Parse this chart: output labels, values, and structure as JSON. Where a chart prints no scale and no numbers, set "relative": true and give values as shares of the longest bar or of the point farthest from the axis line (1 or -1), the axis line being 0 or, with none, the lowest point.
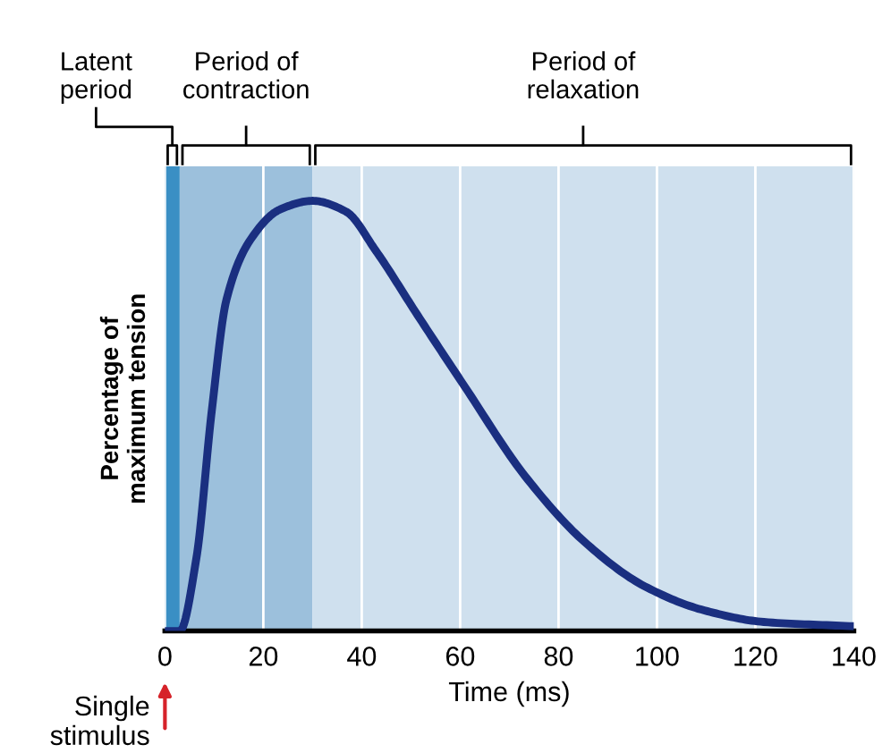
{
  "chart_data": {
    "type": "line",
    "relative": true,
    "xlabel": "Time (ms)",
    "ylabel": "Percentage of\nmaximum tension",
    "x": [
      0,
      3,
      6.4,
      9.5,
      12.5,
      17.4,
      23.4,
      30,
      36.8,
      42.8,
      51.3,
      61,
      73.2,
      85.3,
      97.5,
      109.6,
      121.7,
      140
    ],
    "series": [
      {
        "color": "#1a2f80",
        "values": [
          0,
          0,
          0.17,
          0.51,
          0.77,
          0.91,
          0.98,
          1,
          0.975,
          0.885,
          0.735,
          0.567,
          0.36,
          0.207,
          0.104,
          0.048,
          0.021,
          0.011
        ]
      }
    ],
    "xlim": [
      0,
      140
    ],
    "xticks": [
      0,
      20,
      40,
      60,
      80,
      100,
      120,
      140
    ],
    "grid": "x",
    "marker": "none",
    "line_style": "solid",
    "bands": [
      {
        "axis": "x",
        "from": 0,
        "to": 3,
        "label": "Latent\nperiod",
        "color": "#3a8fc4"
      },
      {
        "axis": "x",
        "from": 3,
        "to": 30,
        "label": "Period of\ncontraction",
        "color": "#9cc0dc"
      },
      {
        "axis": "x",
        "from": 30,
        "to": 140,
        "label": "Period of\nrelaxation",
        "color": "#cfe0ee"
      }
    ],
    "annotations": [
      {
        "text": "Single\nstimulus",
        "x": 0,
        "y": 0
      }
    ]
  }
}
